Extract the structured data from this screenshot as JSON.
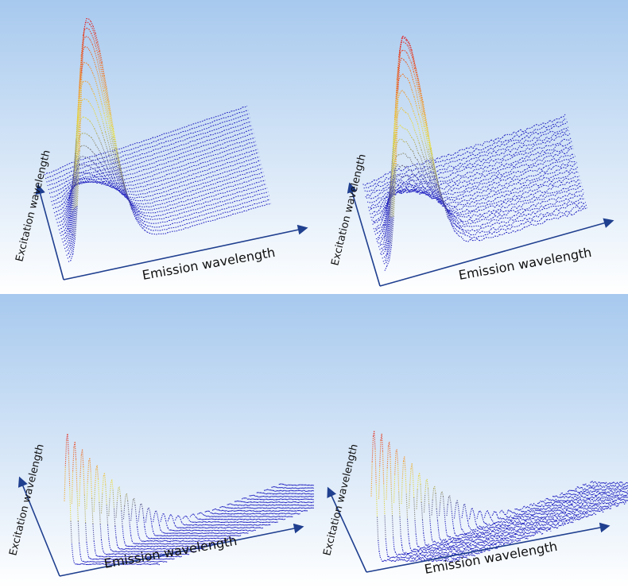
{
  "figure": {
    "panel_count": 4,
    "layout": "2x2 grid"
  },
  "colors": {
    "background_top": "#a7c9ee",
    "background_bottom": "#ffffff",
    "axis": "#1f3f8f",
    "low_intensity": "#2020c0",
    "mid_intensity": "#e8e040",
    "high_intensity": "#e02020"
  },
  "chart_data": [
    {
      "type": "3d-line-stack",
      "panel": "top-left",
      "xlabel": "Emission wavelength",
      "ylabel": "Excitation wavelength",
      "grid": false,
      "traces": 26,
      "shape": "smooth single emission peak near the left; height falls off with excitation",
      "peak_relative_height": [
        1.0,
        0.97,
        0.93,
        0.88,
        0.82,
        0.74,
        0.65,
        0.56,
        0.47,
        0.39,
        0.32,
        0.26,
        0.21,
        0.16,
        0.12,
        0.09,
        0.07,
        0.05,
        0.04,
        0.03,
        0.02,
        0.015,
        0.01,
        0.01,
        0.01,
        0.01
      ],
      "color_scale": [
        "blue (low)",
        "gray",
        "yellow",
        "orange",
        "red (high)"
      ]
    },
    {
      "type": "3d-line-stack",
      "panel": "top-right",
      "xlabel": "Emission wavelength",
      "ylabel": "Excitation wavelength",
      "grid": false,
      "traces": 26,
      "shape": "smooth single emission peak with slight noise; height falls off with excitation",
      "peak_relative_height": [
        1.0,
        0.98,
        0.95,
        0.9,
        0.84,
        0.76,
        0.67,
        0.58,
        0.49,
        0.41,
        0.34,
        0.27,
        0.21,
        0.16,
        0.12,
        0.09,
        0.07,
        0.05,
        0.04,
        0.03,
        0.02,
        0.015,
        0.01,
        0.01,
        0.01,
        0.01
      ],
      "color_scale": [
        "blue (low)",
        "gray",
        "yellow",
        "orange",
        "red (high)"
      ]
    },
    {
      "type": "3d-line-stack",
      "panel": "bottom-left",
      "xlabel": "Emission wavelength",
      "ylabel": "Excitation wavelength",
      "grid": false,
      "traces": 30,
      "shape": "narrow spikes at the start of each trace; spike height falls off with excitation",
      "peak_relative_height": [
        1.0,
        0.92,
        0.84,
        0.76,
        0.68,
        0.6,
        0.53,
        0.46,
        0.39,
        0.33,
        0.27,
        0.22,
        0.17,
        0.13,
        0.1,
        0.07,
        0.05,
        0.04,
        0.03,
        0.02,
        0.015,
        0.01,
        0.01,
        0.01,
        0.01,
        0.01,
        0.01,
        0.01,
        0.01,
        0.01
      ],
      "color_scale": [
        "blue (low)",
        "gray",
        "yellow",
        "orange",
        "red (high)"
      ]
    },
    {
      "type": "3d-line-stack",
      "panel": "bottom-right",
      "xlabel": "Emission wavelength",
      "ylabel": "Excitation wavelength",
      "grid": false,
      "traces": 30,
      "shape": "narrow noisy spikes at the start of each trace; spike height falls off with excitation",
      "peak_relative_height": [
        1.0,
        0.95,
        0.88,
        0.8,
        0.72,
        0.64,
        0.56,
        0.49,
        0.42,
        0.36,
        0.3,
        0.24,
        0.19,
        0.15,
        0.11,
        0.08,
        0.06,
        0.045,
        0.03,
        0.02,
        0.015,
        0.01,
        0.01,
        0.01,
        0.01,
        0.01,
        0.01,
        0.01,
        0.01,
        0.01
      ],
      "color_scale": [
        "blue (low)",
        "gray",
        "yellow",
        "orange",
        "red (high)"
      ]
    }
  ]
}
